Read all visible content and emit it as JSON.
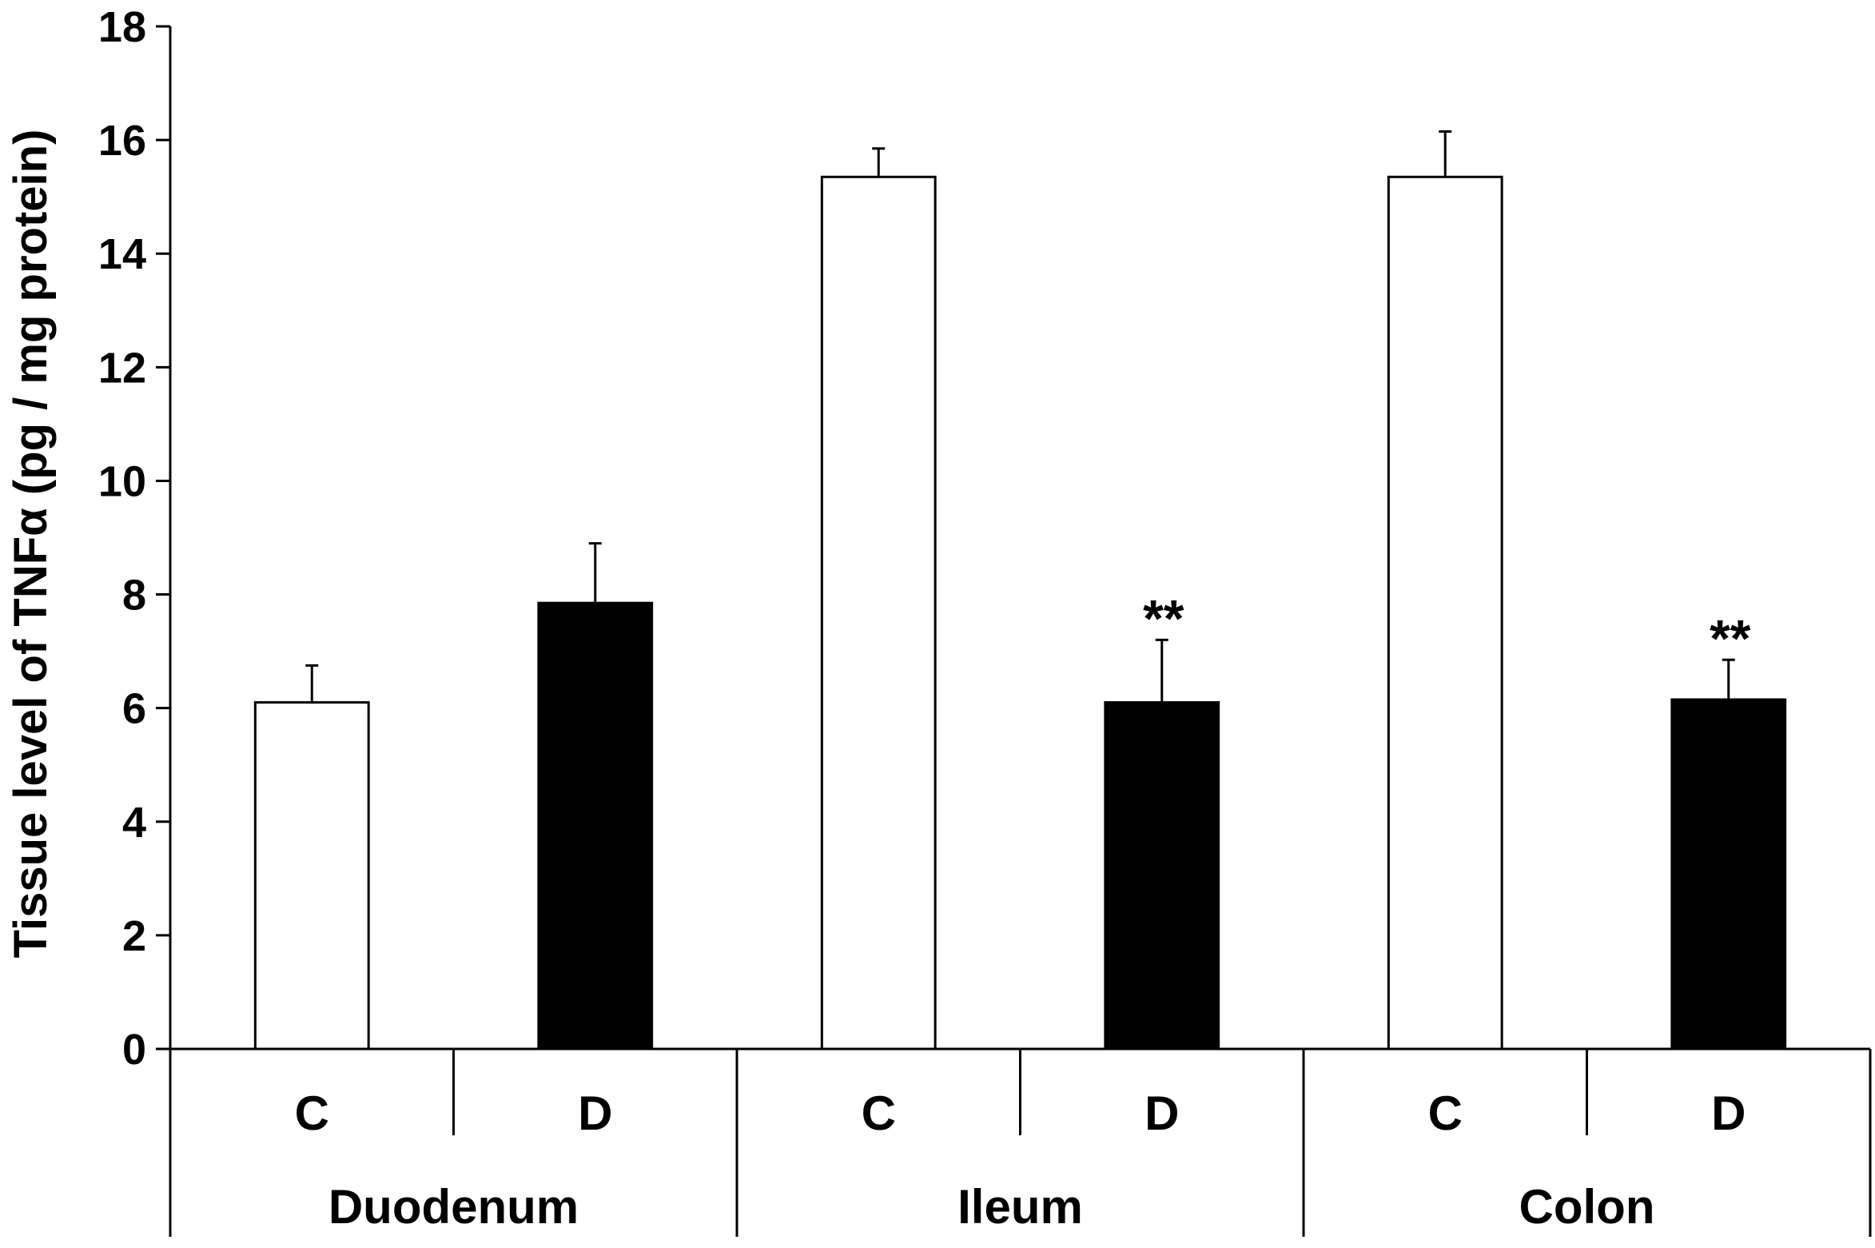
{
  "chart_data": {
    "type": "bar",
    "ylabel": "Tissue level of TNFα (pg / mg protein)",
    "ylim": [
      0,
      18
    ],
    "yticks": [
      0,
      2,
      4,
      6,
      8,
      10,
      12,
      14,
      16,
      18
    ],
    "groups": [
      {
        "label": "Duodenum",
        "bars": [
          {
            "category": "C",
            "value": 6.1,
            "error": 0.65,
            "fill": "#ffffff",
            "annotation": ""
          },
          {
            "category": "D",
            "value": 7.85,
            "error": 1.05,
            "fill": "#000000",
            "annotation": ""
          }
        ]
      },
      {
        "label": "Ileum",
        "bars": [
          {
            "category": "C",
            "value": 15.35,
            "error": 0.5,
            "fill": "#ffffff",
            "annotation": ""
          },
          {
            "category": "D",
            "value": 6.1,
            "error": 1.1,
            "fill": "#000000",
            "annotation": "**"
          }
        ]
      },
      {
        "label": "Colon",
        "bars": [
          {
            "category": "C",
            "value": 15.35,
            "error": 0.8,
            "fill": "#ffffff",
            "annotation": ""
          },
          {
            "category": "D",
            "value": 6.15,
            "error": 0.7,
            "fill": "#000000",
            "annotation": "**"
          }
        ]
      }
    ],
    "grid": false,
    "legend": "none"
  }
}
